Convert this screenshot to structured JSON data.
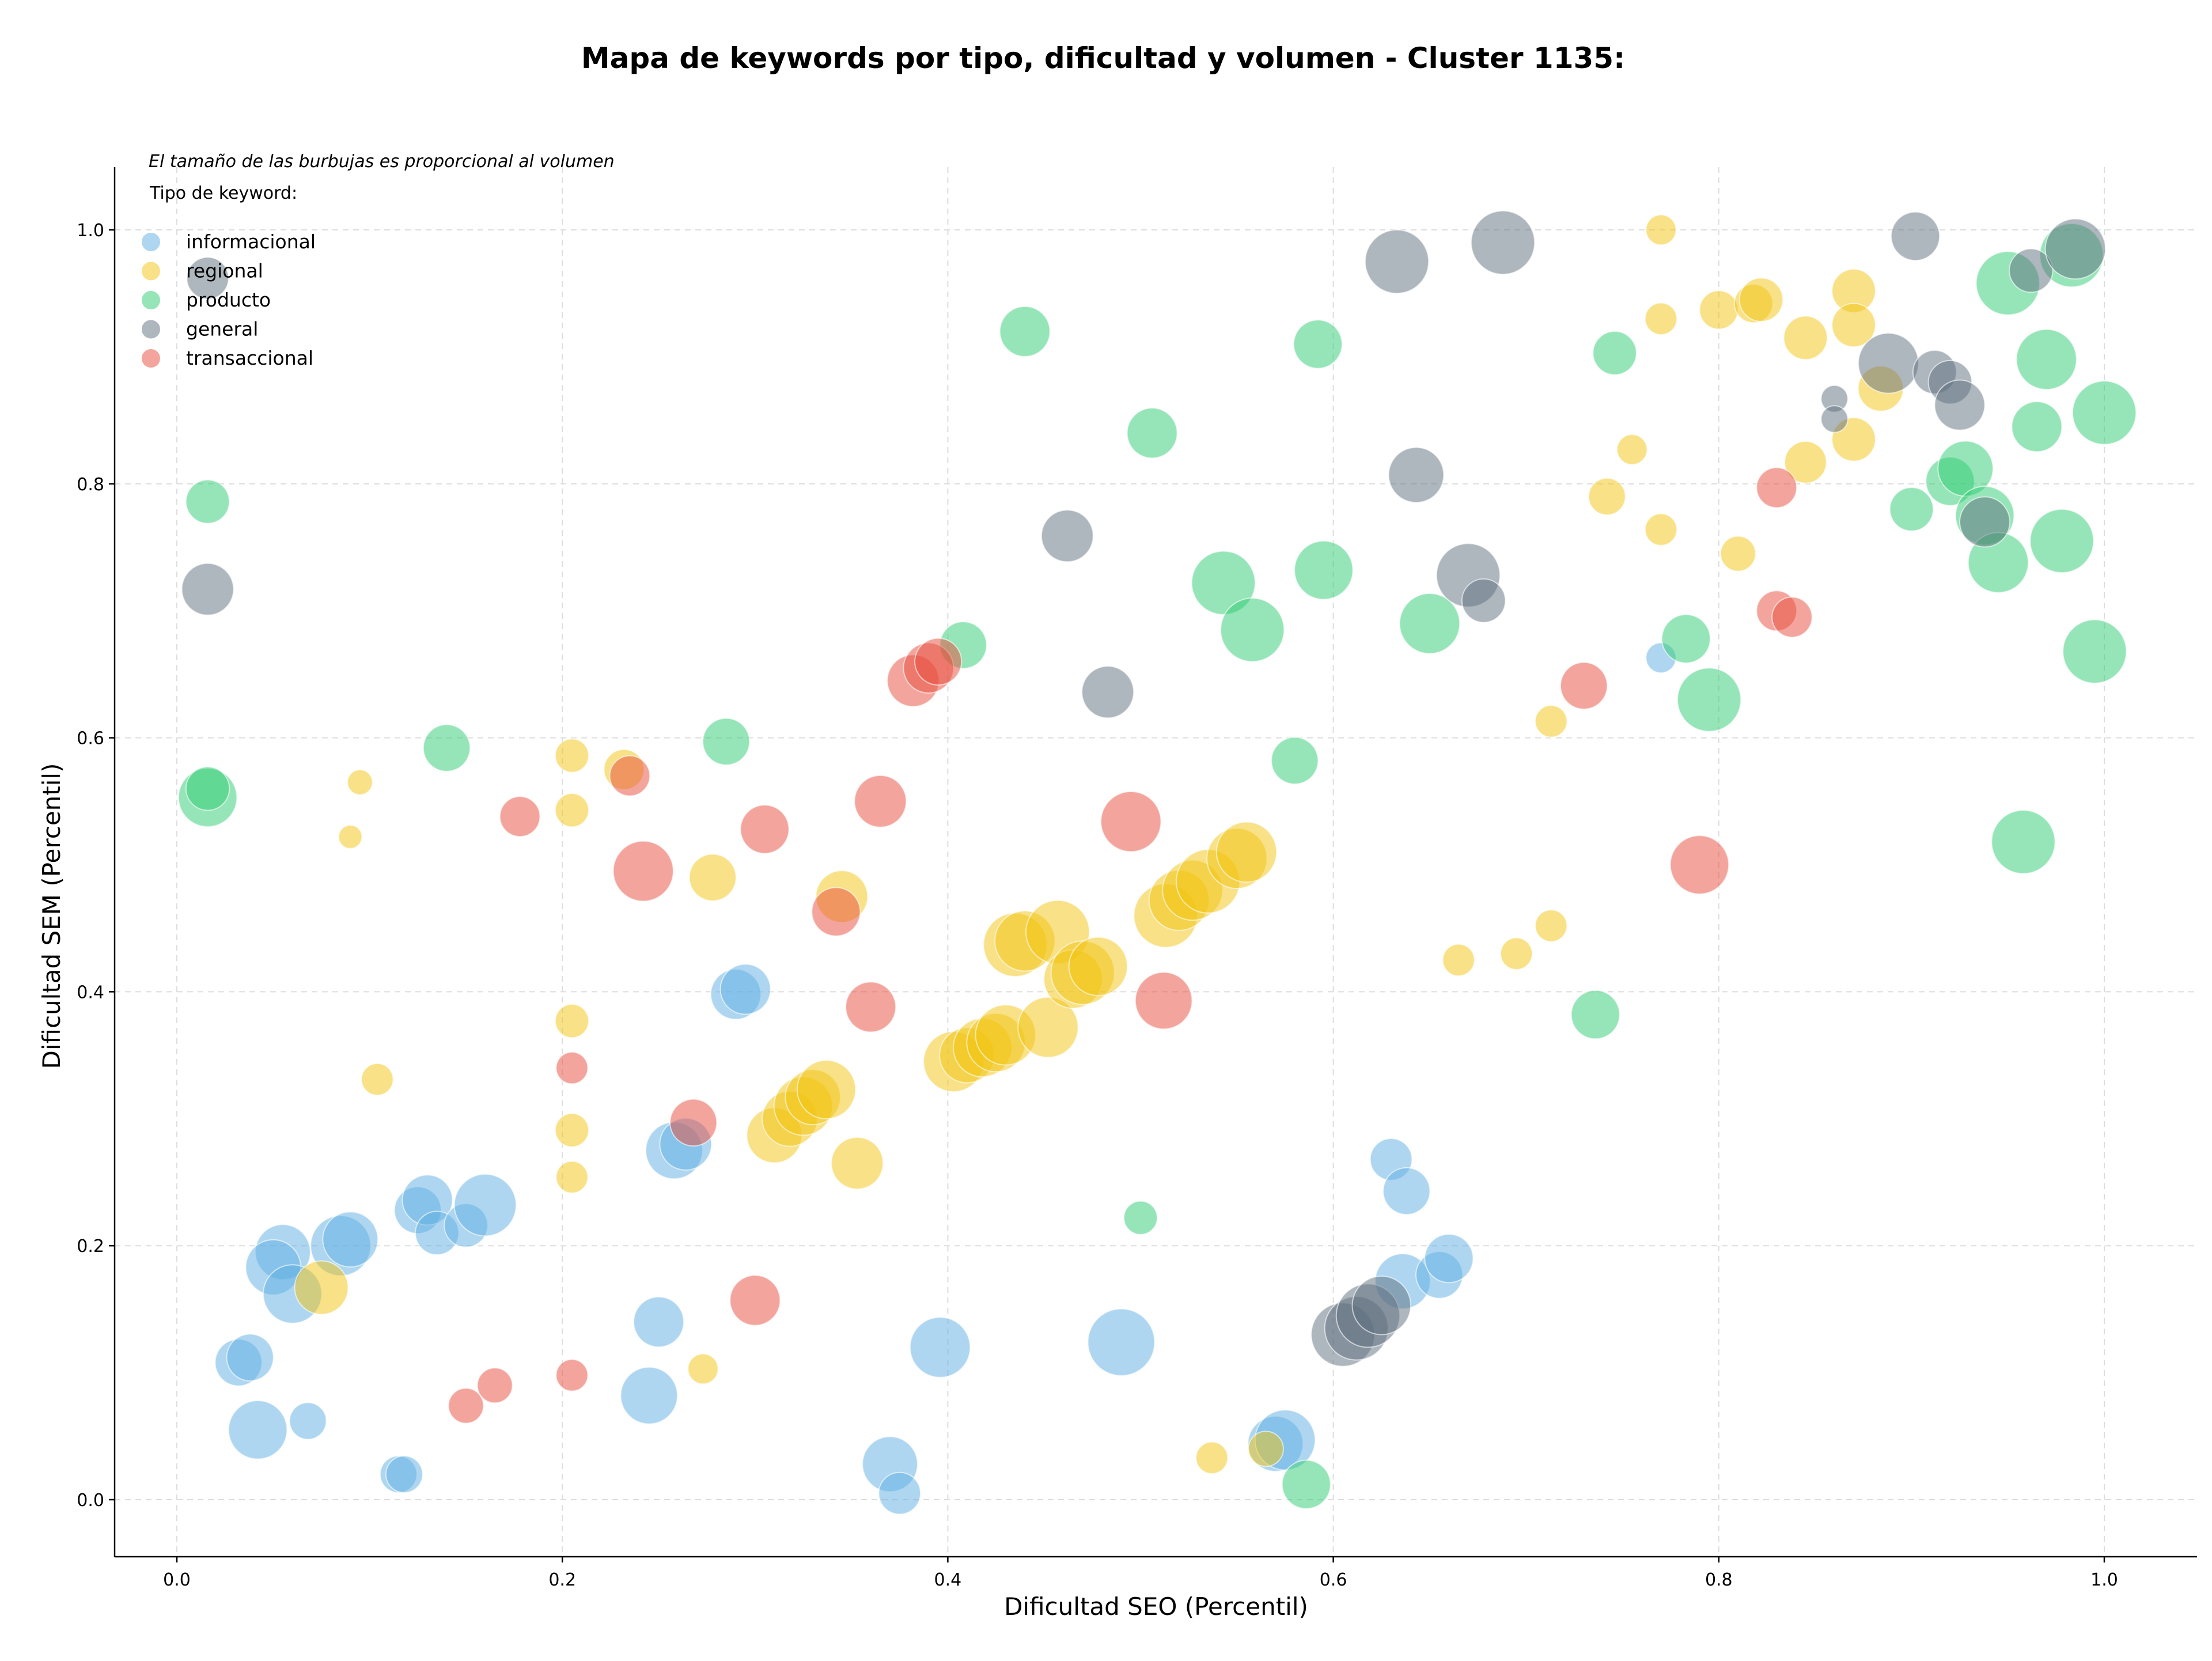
{
  "chart_data": {
    "type": "scatter",
    "title": "Mapa de keywords por tipo, dificultad y volumen - Cluster 1135:",
    "xlabel": "Dificultad SEO (Percentil)",
    "ylabel": "Dificultad SEM (Percentil)",
    "xlim": [
      -0.05,
      1.05
    ],
    "ylim": [
      -0.045,
      1.05
    ],
    "xticks": [
      0.0,
      0.2,
      0.4,
      0.6,
      0.8,
      1.0
    ],
    "xtick_labels": [
      "0.0",
      "0.2",
      "0.4",
      "0.6",
      "0.8",
      "1.0"
    ],
    "yticks": [
      0.0,
      0.2,
      0.4,
      0.6,
      0.8,
      1.0
    ],
    "ytick_labels": [
      "0.0",
      "0.2",
      "0.4",
      "0.6",
      "0.8",
      "1.0"
    ],
    "grid": true,
    "legend_position": "top-left",
    "annotation": "El tamaño de las burbujas es proporcional al volumen",
    "legend_title": "Tipo de keyword:",
    "series": [
      {
        "name": "informacional",
        "color": "#5dade2",
        "points": [
          [
            0.032,
            0.108,
            2.8
          ],
          [
            0.038,
            0.112,
            2.8
          ],
          [
            0.042,
            0.055,
            3.5
          ],
          [
            0.055,
            0.195,
            3.3
          ],
          [
            0.05,
            0.183,
            3.3
          ],
          [
            0.06,
            0.162,
            3.5
          ],
          [
            0.068,
            0.062,
            2.2
          ],
          [
            0.085,
            0.2,
            3.6
          ],
          [
            0.09,
            0.205,
            3.3
          ],
          [
            0.115,
            0.02,
            2.2
          ],
          [
            0.118,
            0.02,
            2.2
          ],
          [
            0.125,
            0.228,
            2.8
          ],
          [
            0.13,
            0.236,
            3.0
          ],
          [
            0.135,
            0.21,
            2.6
          ],
          [
            0.15,
            0.216,
            2.6
          ],
          [
            0.16,
            0.232,
            3.7
          ],
          [
            0.245,
            0.082,
            3.4
          ],
          [
            0.25,
            0.14,
            3.0
          ],
          [
            0.258,
            0.275,
            3.4
          ],
          [
            0.264,
            0.28,
            3.1
          ],
          [
            0.29,
            0.398,
            3.0
          ],
          [
            0.295,
            0.402,
            3.0
          ],
          [
            0.37,
            0.028,
            3.3
          ],
          [
            0.375,
            0.005,
            2.5
          ],
          [
            0.396,
            0.12,
            3.6
          ],
          [
            0.49,
            0.124,
            4.0
          ],
          [
            0.57,
            0.044,
            3.3
          ],
          [
            0.575,
            0.047,
            3.6
          ],
          [
            0.63,
            0.268,
            2.5
          ],
          [
            0.638,
            0.243,
            2.8
          ],
          [
            0.636,
            0.172,
            3.3
          ],
          [
            0.655,
            0.177,
            2.8
          ],
          [
            0.66,
            0.19,
            2.9
          ],
          [
            0.77,
            0.663,
            1.8
          ]
        ]
      },
      {
        "name": "regional",
        "color": "#f1c40f",
        "points": [
          [
            0.075,
            0.167,
            3.2
          ],
          [
            0.09,
            0.522,
            1.4
          ],
          [
            0.095,
            0.565,
            1.5
          ],
          [
            0.104,
            0.331,
            1.9
          ],
          [
            0.205,
            0.586,
            2.0
          ],
          [
            0.205,
            0.543,
            2.0
          ],
          [
            0.205,
            0.377,
            2.0
          ],
          [
            0.205,
            0.291,
            2.0
          ],
          [
            0.205,
            0.254,
            1.9
          ],
          [
            0.232,
            0.575,
            2.4
          ],
          [
            0.278,
            0.49,
            2.8
          ],
          [
            0.273,
            0.103,
            1.8
          ],
          [
            0.31,
            0.287,
            3.3
          ],
          [
            0.318,
            0.3,
            3.3
          ],
          [
            0.325,
            0.31,
            3.5
          ],
          [
            0.33,
            0.317,
            3.3
          ],
          [
            0.337,
            0.323,
            3.5
          ],
          [
            0.345,
            0.475,
            3.1
          ],
          [
            0.353,
            0.265,
            3.1
          ],
          [
            0.403,
            0.345,
            3.6
          ],
          [
            0.41,
            0.35,
            3.3
          ],
          [
            0.418,
            0.356,
            3.5
          ],
          [
            0.425,
            0.36,
            3.5
          ],
          [
            0.43,
            0.366,
            3.6
          ],
          [
            0.435,
            0.437,
            3.8
          ],
          [
            0.44,
            0.44,
            3.6
          ],
          [
            0.452,
            0.372,
            3.6
          ],
          [
            0.457,
            0.447,
            3.8
          ],
          [
            0.465,
            0.41,
            3.5
          ],
          [
            0.47,
            0.415,
            3.8
          ],
          [
            0.478,
            0.42,
            3.5
          ],
          [
            0.513,
            0.46,
            3.8
          ],
          [
            0.52,
            0.472,
            3.6
          ],
          [
            0.527,
            0.48,
            3.6
          ],
          [
            0.535,
            0.487,
            3.8
          ],
          [
            0.55,
            0.505,
            3.6
          ],
          [
            0.555,
            0.51,
            3.6
          ],
          [
            0.537,
            0.033,
            1.9
          ],
          [
            0.565,
            0.04,
            2.1
          ],
          [
            0.665,
            0.425,
            1.9
          ],
          [
            0.695,
            0.43,
            1.9
          ],
          [
            0.713,
            0.452,
            1.9
          ],
          [
            0.713,
            0.613,
            1.9
          ],
          [
            0.742,
            0.79,
            2.2
          ],
          [
            0.755,
            0.827,
            1.8
          ],
          [
            0.77,
            1.0,
            1.8
          ],
          [
            0.77,
            0.93,
            1.9
          ],
          [
            0.77,
            0.764,
            1.9
          ],
          [
            0.8,
            0.937,
            2.3
          ],
          [
            0.81,
            0.745,
            2.1
          ],
          [
            0.818,
            0.942,
            2.3
          ],
          [
            0.822,
            0.945,
            2.6
          ],
          [
            0.845,
            0.817,
            2.5
          ],
          [
            0.845,
            0.915,
            2.6
          ],
          [
            0.87,
            0.952,
            2.6
          ],
          [
            0.87,
            0.925,
            2.6
          ],
          [
            0.87,
            0.835,
            2.6
          ],
          [
            0.884,
            0.875,
            2.7
          ]
        ]
      },
      {
        "name": "producto",
        "color": "#2ecc71",
        "points": [
          [
            0.016,
            0.786,
            2.6
          ],
          [
            0.016,
            0.553,
            3.5
          ],
          [
            0.016,
            0.56,
            2.6
          ],
          [
            0.14,
            0.592,
            2.8
          ],
          [
            0.285,
            0.597,
            2.8
          ],
          [
            0.408,
            0.673,
            2.8
          ],
          [
            0.44,
            0.92,
            3.0
          ],
          [
            0.506,
            0.84,
            3.0
          ],
          [
            0.5,
            0.222,
            2.0
          ],
          [
            0.543,
            0.722,
            3.8
          ],
          [
            0.558,
            0.685,
            3.8
          ],
          [
            0.58,
            0.582,
            2.8
          ],
          [
            0.592,
            0.91,
            2.9
          ],
          [
            0.595,
            0.732,
            3.5
          ],
          [
            0.586,
            0.012,
            2.9
          ],
          [
            0.65,
            0.69,
            3.6
          ],
          [
            0.736,
            0.382,
            2.9
          ],
          [
            0.746,
            0.903,
            2.6
          ],
          [
            0.783,
            0.678,
            2.9
          ],
          [
            0.795,
            0.63,
            3.8
          ],
          [
            0.9,
            0.78,
            2.6
          ],
          [
            0.92,
            0.802,
            2.9
          ],
          [
            0.928,
            0.812,
            3.3
          ],
          [
            0.938,
            0.775,
            3.5
          ],
          [
            0.945,
            0.738,
            3.6
          ],
          [
            0.95,
            0.958,
            3.8
          ],
          [
            0.958,
            0.518,
            3.8
          ],
          [
            0.965,
            0.845,
            3.0
          ],
          [
            0.97,
            0.898,
            3.6
          ],
          [
            0.978,
            0.755,
            3.8
          ],
          [
            0.983,
            0.98,
            3.8
          ],
          [
            0.995,
            0.668,
            3.8
          ],
          [
            1.0,
            0.856,
            3.8
          ]
        ]
      },
      {
        "name": "general",
        "color": "#5d6d7e",
        "points": [
          [
            0.016,
            0.962,
            2.5
          ],
          [
            0.016,
            0.717,
            3.1
          ],
          [
            0.462,
            0.759,
            3.1
          ],
          [
            0.483,
            0.636,
            3.1
          ],
          [
            0.605,
            0.13,
            3.8
          ],
          [
            0.612,
            0.135,
            3.8
          ],
          [
            0.618,
            0.145,
            3.8
          ],
          [
            0.625,
            0.153,
            3.5
          ],
          [
            0.633,
            0.975,
            3.8
          ],
          [
            0.643,
            0.807,
            3.3
          ],
          [
            0.67,
            0.728,
            3.8
          ],
          [
            0.678,
            0.708,
            2.6
          ],
          [
            0.688,
            0.99,
            3.8
          ],
          [
            0.86,
            0.867,
            1.6
          ],
          [
            0.86,
            0.851,
            1.6
          ],
          [
            0.888,
            0.895,
            3.6
          ],
          [
            0.902,
            0.995,
            2.9
          ],
          [
            0.912,
            0.888,
            2.6
          ],
          [
            0.92,
            0.88,
            2.6
          ],
          [
            0.925,
            0.862,
            3.0
          ],
          [
            0.938,
            0.77,
            3.0
          ],
          [
            0.962,
            0.968,
            2.6
          ],
          [
            0.985,
            0.985,
            3.6
          ]
        ]
      },
      {
        "name": "transaccional",
        "color": "#e74c3c",
        "points": [
          [
            0.15,
            0.074,
            2.1
          ],
          [
            0.165,
            0.09,
            2.1
          ],
          [
            0.178,
            0.538,
            2.4
          ],
          [
            0.205,
            0.34,
            1.9
          ],
          [
            0.205,
            0.098,
            1.9
          ],
          [
            0.235,
            0.57,
            2.4
          ],
          [
            0.242,
            0.495,
            3.6
          ],
          [
            0.268,
            0.297,
            2.8
          ],
          [
            0.3,
            0.157,
            3.0
          ],
          [
            0.305,
            0.528,
            2.9
          ],
          [
            0.342,
            0.463,
            2.9
          ],
          [
            0.36,
            0.388,
            3.0
          ],
          [
            0.365,
            0.55,
            3.1
          ],
          [
            0.382,
            0.645,
            3.1
          ],
          [
            0.39,
            0.655,
            3.0
          ],
          [
            0.395,
            0.66,
            2.8
          ],
          [
            0.495,
            0.534,
            3.6
          ],
          [
            0.512,
            0.393,
            3.4
          ],
          [
            0.73,
            0.641,
            2.8
          ],
          [
            0.79,
            0.5,
            3.5
          ],
          [
            0.83,
            0.797,
            2.4
          ],
          [
            0.83,
            0.7,
            2.4
          ],
          [
            0.838,
            0.695,
            2.4
          ]
        ]
      }
    ]
  }
}
